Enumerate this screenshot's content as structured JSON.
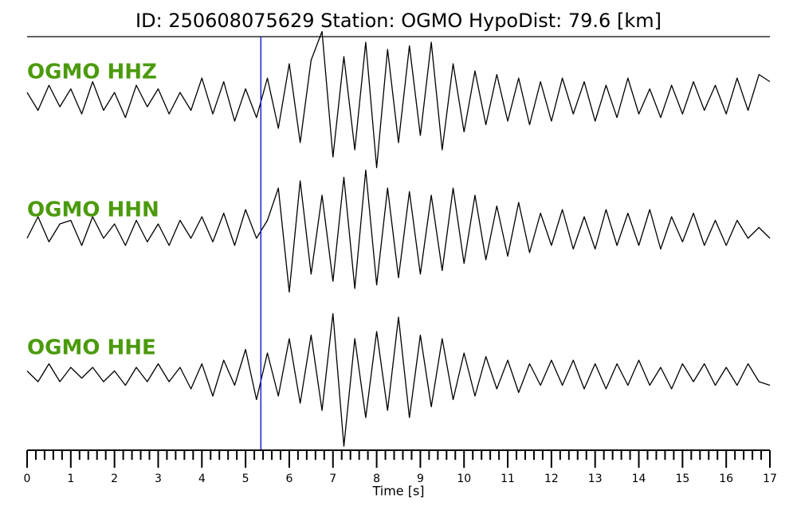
{
  "chart_data": {
    "type": "line",
    "title": "ID: 250608075629   Station: OGMO   HypoDist:    79.6 [km]",
    "xlabel": "Time [s]",
    "xlim": [
      0,
      17
    ],
    "xticks": [
      0,
      1,
      2,
      3,
      4,
      5,
      6,
      7,
      8,
      9,
      10,
      11,
      12,
      13,
      14,
      15,
      16,
      17
    ],
    "xminorticks": [
      0.2,
      0.4,
      0.6,
      0.8,
      1.2,
      1.4,
      1.6,
      1.8,
      2.2,
      2.4,
      2.6,
      2.8,
      3.2,
      3.4,
      3.6,
      3.8,
      4.2,
      4.4,
      4.6,
      4.8,
      5.2,
      5.4,
      5.6,
      5.8,
      6.2,
      6.4,
      6.6,
      6.8,
      7.2,
      7.4,
      7.6,
      7.8,
      8.2,
      8.4,
      8.6,
      8.8,
      9.2,
      9.4,
      9.6,
      9.8,
      10.2,
      10.4,
      10.6,
      10.8,
      11.2,
      11.4,
      11.6,
      11.8,
      12.2,
      12.4,
      12.6,
      12.8,
      13.2,
      13.4,
      13.6,
      13.8,
      14.2,
      14.4,
      14.6,
      14.8,
      15.2,
      15.4,
      15.6,
      15.8,
      16.2,
      16.4,
      16.6,
      16.8
    ],
    "pick": 5.35,
    "pick_color": "#1f1fd6",
    "label_color": "#4b9a0c",
    "line_color": "#000000",
    "x": [
      0,
      0.25,
      0.5,
      0.75,
      1,
      1.25,
      1.5,
      1.75,
      2,
      2.25,
      2.5,
      2.75,
      3,
      3.25,
      3.5,
      3.75,
      4,
      4.25,
      4.5,
      4.75,
      5,
      5.25,
      5.5,
      5.75,
      6,
      6.25,
      6.5,
      6.75,
      7,
      7.25,
      7.5,
      7.75,
      8,
      8.25,
      8.5,
      8.75,
      9,
      9.25,
      9.5,
      9.75,
      10,
      10.25,
      10.5,
      10.75,
      11,
      11.25,
      11.5,
      11.75,
      12,
      12.25,
      12.5,
      12.75,
      13,
      13.25,
      13.5,
      13.75,
      14,
      14.25,
      14.5,
      14.75,
      15,
      15.25,
      15.5,
      15.75,
      16,
      16.25,
      16.5,
      16.75,
      17
    ],
    "series": [
      {
        "name": "OGMO HHZ",
        "values": [
          0.1,
          -0.15,
          0.2,
          -0.1,
          0.15,
          -0.2,
          0.25,
          -0.15,
          0.1,
          -0.25,
          0.2,
          -0.1,
          0.15,
          -0.2,
          0.1,
          -0.15,
          0.3,
          -0.2,
          0.25,
          -0.3,
          0.15,
          -0.25,
          0.3,
          -0.4,
          0.5,
          -0.6,
          0.55,
          0.95,
          -0.8,
          0.6,
          -0.7,
          0.8,
          -0.95,
          0.7,
          -0.6,
          0.75,
          -0.5,
          0.8,
          -0.7,
          0.5,
          -0.45,
          0.4,
          -0.35,
          0.35,
          -0.3,
          0.3,
          -0.35,
          0.25,
          -0.3,
          0.3,
          -0.2,
          0.25,
          -0.3,
          0.2,
          -0.25,
          0.3,
          -0.2,
          0.15,
          -0.25,
          0.2,
          -0.2,
          0.25,
          -0.15,
          0.2,
          -0.2,
          0.3,
          -0.15,
          0.35,
          0.25
        ]
      },
      {
        "name": "OGMO HHN",
        "values": [
          -0.1,
          0.2,
          -0.15,
          0.1,
          0.15,
          -0.2,
          0.2,
          -0.1,
          0.1,
          -0.2,
          0.15,
          -0.15,
          0.1,
          -0.2,
          0.15,
          -0.1,
          0.2,
          -0.15,
          0.25,
          -0.2,
          0.3,
          -0.1,
          0.15,
          0.6,
          -0.85,
          0.7,
          -0.6,
          0.5,
          -0.7,
          0.75,
          -0.8,
          0.85,
          -0.75,
          0.6,
          -0.65,
          0.55,
          -0.6,
          0.5,
          -0.55,
          0.6,
          -0.45,
          0.5,
          -0.4,
          0.35,
          -0.35,
          0.4,
          -0.3,
          0.25,
          -0.2,
          0.3,
          -0.25,
          0.2,
          -0.25,
          0.3,
          -0.2,
          0.25,
          -0.2,
          0.3,
          -0.25,
          0.2,
          -0.15,
          0.25,
          -0.2,
          0.15,
          -0.2,
          0.15,
          -0.1,
          0.05,
          -0.1
        ]
      },
      {
        "name": "OGMO HHE",
        "values": [
          0.05,
          -0.1,
          0.15,
          -0.1,
          0.1,
          -0.05,
          0.1,
          -0.1,
          0.05,
          -0.15,
          0.1,
          -0.1,
          0.15,
          -0.1,
          0.1,
          -0.2,
          0.15,
          -0.3,
          0.2,
          -0.15,
          0.35,
          -0.35,
          0.3,
          -0.3,
          0.5,
          -0.4,
          0.55,
          -0.5,
          0.85,
          -1.0,
          0.5,
          -0.6,
          0.6,
          -0.5,
          0.8,
          -0.6,
          0.55,
          -0.45,
          0.5,
          -0.35,
          0.3,
          -0.3,
          0.25,
          -0.2,
          0.2,
          -0.25,
          0.15,
          -0.15,
          0.2,
          -0.15,
          0.2,
          -0.2,
          0.15,
          -0.2,
          0.15,
          -0.15,
          0.2,
          -0.15,
          0.1,
          -0.2,
          0.15,
          -0.1,
          0.15,
          -0.15,
          0.1,
          -0.15,
          0.15,
          -0.1,
          -0.15
        ]
      }
    ]
  }
}
